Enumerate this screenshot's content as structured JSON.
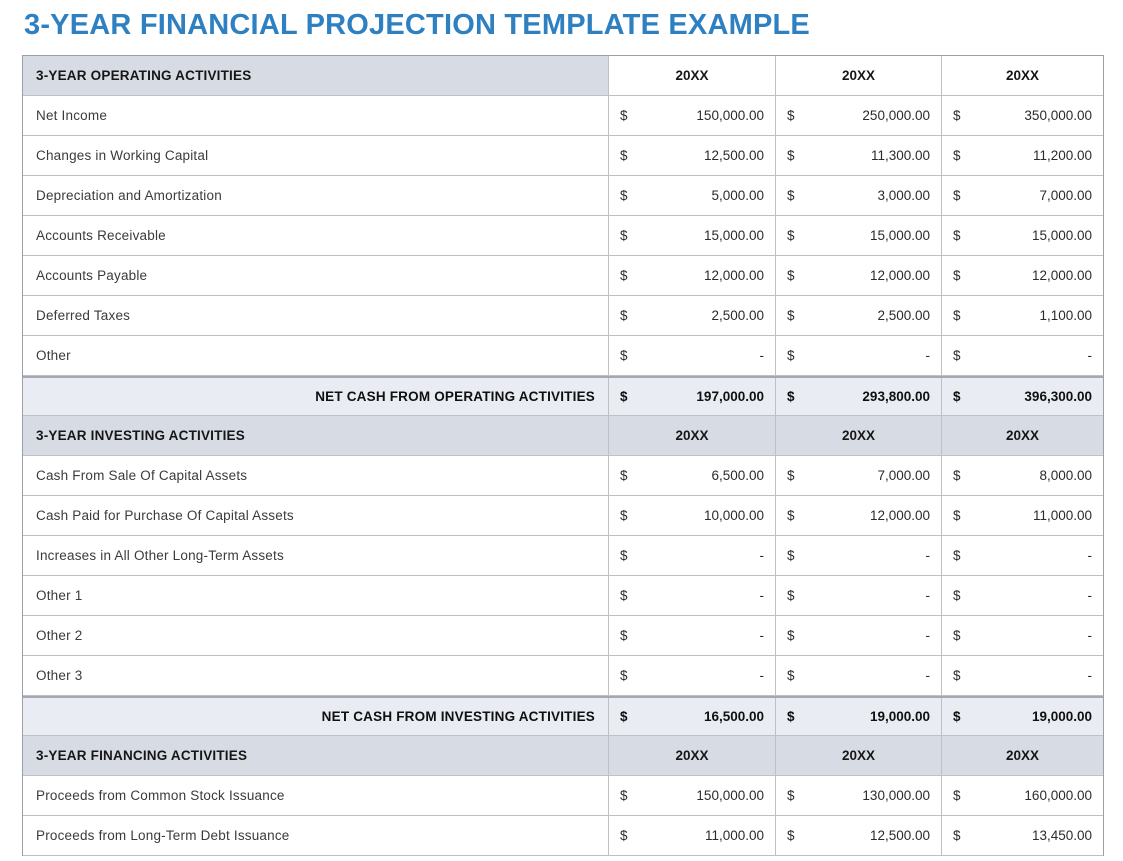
{
  "title": "3-YEAR FINANCIAL PROJECTION TEMPLATE EXAMPLE",
  "currency_symbol": "$",
  "colors": {
    "title_accent": "#2E80C1",
    "section_header_bg": "#D7DCE4",
    "total_row_bg": "#E9ECF2",
    "grid_border": "#C0C0C0"
  },
  "sections": [
    {
      "header": {
        "label": "3-YEAR OPERATING ACTIVITIES",
        "cols": [
          "20XX",
          "20XX",
          "20XX"
        ]
      },
      "rows": [
        {
          "label": "Net Income",
          "values": [
            "150,000.00",
            "250,000.00",
            "350,000.00"
          ]
        },
        {
          "label": "Changes in Working Capital",
          "values": [
            "12,500.00",
            "11,300.00",
            "11,200.00"
          ]
        },
        {
          "label": "Depreciation and Amortization",
          "values": [
            "5,000.00",
            "3,000.00",
            "7,000.00"
          ]
        },
        {
          "label": "Accounts Receivable",
          "values": [
            "15,000.00",
            "15,000.00",
            "15,000.00"
          ]
        },
        {
          "label": "Accounts Payable",
          "values": [
            "12,000.00",
            "12,000.00",
            "12,000.00"
          ]
        },
        {
          "label": "Deferred Taxes",
          "values": [
            "2,500.00",
            "2,500.00",
            "1,100.00"
          ]
        },
        {
          "label": "Other",
          "values": [
            "-",
            "-",
            "-"
          ]
        }
      ],
      "total": {
        "label": "NET CASH FROM OPERATING ACTIVITIES",
        "values": [
          "197,000.00",
          "293,800.00",
          "396,300.00"
        ]
      }
    },
    {
      "header": {
        "label": "3-YEAR INVESTING ACTIVITIES",
        "cols": [
          "20XX",
          "20XX",
          "20XX"
        ]
      },
      "rows": [
        {
          "label": "Cash From Sale Of Capital Assets",
          "values": [
            "6,500.00",
            "7,000.00",
            "8,000.00"
          ]
        },
        {
          "label": "Cash Paid for Purchase Of Capital Assets",
          "values": [
            "10,000.00",
            "12,000.00",
            "11,000.00"
          ]
        },
        {
          "label": "Increases in All Other Long-Term Assets",
          "values": [
            "-",
            "-",
            "-"
          ]
        },
        {
          "label": "Other 1",
          "values": [
            "-",
            "-",
            "-"
          ]
        },
        {
          "label": "Other 2",
          "values": [
            "-",
            "-",
            "-"
          ]
        },
        {
          "label": "Other 3",
          "values": [
            "-",
            "-",
            "-"
          ]
        }
      ],
      "total": {
        "label": "NET CASH FROM INVESTING ACTIVITIES",
        "values": [
          "16,500.00",
          "19,000.00",
          "19,000.00"
        ]
      }
    },
    {
      "header": {
        "label": "3-YEAR FINANCING ACTIVITIES",
        "cols": [
          "20XX",
          "20XX",
          "20XX"
        ]
      },
      "rows": [
        {
          "label": "Proceeds from Common Stock Issuance",
          "values": [
            "150,000.00",
            "130,000.00",
            "160,000.00"
          ]
        },
        {
          "label": "Proceeds from Long-Term Debt Issuance",
          "values": [
            "11,000.00",
            "12,500.00",
            "13,450.00"
          ]
        }
      ],
      "total": null
    }
  ]
}
